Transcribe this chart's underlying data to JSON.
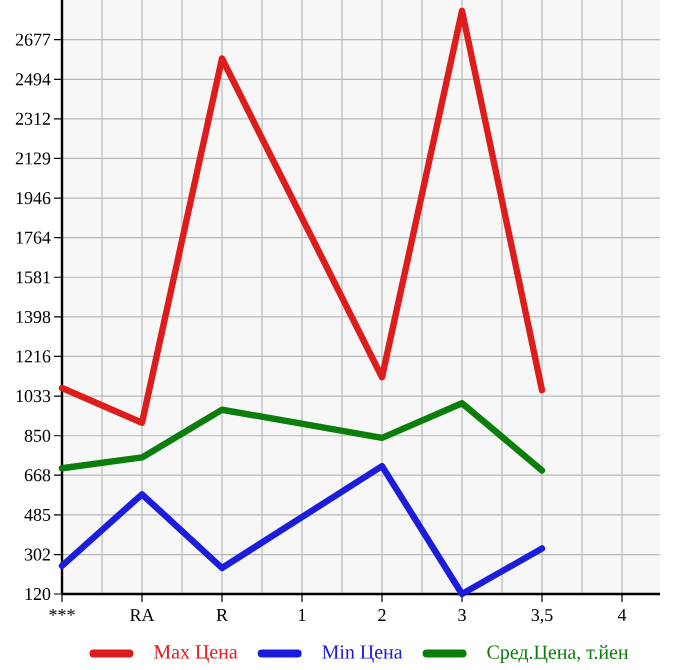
{
  "chart_data": {
    "type": "line",
    "categories": [
      "***",
      "RA",
      "R",
      "1",
      "2",
      "3",
      "3,5",
      "4"
    ],
    "series": [
      {
        "name": "Max Цена",
        "color": "#dd1c1c",
        "values": [
          1070,
          910,
          2590,
          null,
          1120,
          2810,
          1060,
          null
        ]
      },
      {
        "name": "Min Цена",
        "color": "#1c1cdd",
        "values": [
          250,
          580,
          240,
          null,
          710,
          120,
          330,
          null
        ]
      },
      {
        "name": "Сред.Цена, т.йен",
        "color": "#0a7d0a",
        "values": [
          700,
          750,
          970,
          null,
          840,
          1000,
          690,
          null
        ]
      }
    ],
    "ylim": [
      120,
      2860
    ],
    "yticks": [
      120,
      302,
      485,
      668,
      850,
      1033,
      1216,
      1398,
      1581,
      1764,
      1946,
      2129,
      2312,
      2494,
      2677
    ],
    "grid": true,
    "legend": "bottom",
    "marker": "none",
    "line_style": "solid"
  }
}
